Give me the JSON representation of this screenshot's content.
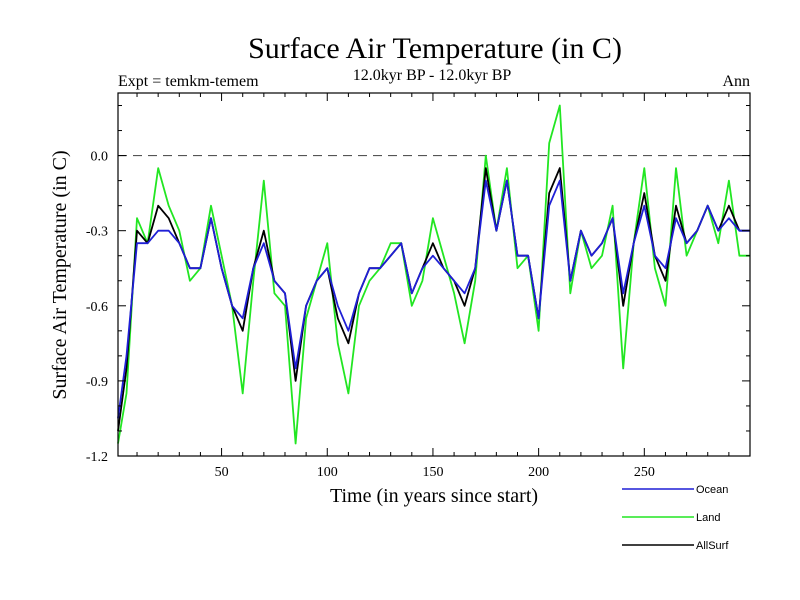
{
  "chart_data": {
    "type": "line",
    "title": "Surface Air Temperature (in C)",
    "subtitle": "12.0kyr BP - 12.0kyr BP",
    "top_left_label": "Expt = temkm-temem",
    "top_right_label": "Ann",
    "xlabel": "Time (in years since start)",
    "ylabel": "Surface Air Temperature (in C)",
    "xlim": [
      1,
      300
    ],
    "ylim": [
      -1.2,
      0.25
    ],
    "xticks": [
      50,
      100,
      150,
      200,
      250
    ],
    "xtick_labels": [
      "50",
      "100",
      "150",
      "200",
      "250"
    ],
    "yticks": [
      -1.2,
      -0.9,
      -0.6,
      -0.3,
      0.0
    ],
    "ytick_labels": [
      "-1.2",
      "-0.9",
      "-0.6",
      "-0.3",
      "0.0"
    ],
    "reference_line": 0.0,
    "legend_position": "bottom-right",
    "colors": {
      "Ocean": "#1f1fd6",
      "Land": "#22e622",
      "AllSurf": "#000000",
      "zero": "#555555"
    },
    "x": [
      1,
      5,
      10,
      15,
      20,
      25,
      30,
      35,
      40,
      45,
      50,
      55,
      60,
      65,
      70,
      75,
      80,
      85,
      90,
      95,
      100,
      105,
      110,
      115,
      120,
      125,
      130,
      135,
      140,
      145,
      150,
      155,
      160,
      165,
      170,
      175,
      180,
      185,
      190,
      195,
      200,
      205,
      210,
      215,
      220,
      225,
      230,
      235,
      240,
      245,
      250,
      255,
      260,
      265,
      270,
      275,
      280,
      285,
      290,
      295,
      300
    ],
    "series": [
      {
        "name": "Land",
        "values": [
          -1.15,
          -0.95,
          -0.25,
          -0.35,
          -0.05,
          -0.2,
          -0.3,
          -0.5,
          -0.45,
          -0.2,
          -0.4,
          -0.6,
          -0.95,
          -0.5,
          -0.1,
          -0.55,
          -0.6,
          -1.15,
          -0.65,
          -0.5,
          -0.35,
          -0.75,
          -0.95,
          -0.6,
          -0.5,
          -0.45,
          -0.35,
          -0.35,
          -0.6,
          -0.5,
          -0.25,
          -0.4,
          -0.55,
          -0.75,
          -0.5,
          0.0,
          -0.3,
          -0.05,
          -0.45,
          -0.4,
          -0.7,
          0.05,
          0.2,
          -0.55,
          -0.3,
          -0.45,
          -0.4,
          -0.2,
          -0.85,
          -0.35,
          -0.05,
          -0.45,
          -0.6,
          -0.05,
          -0.4,
          -0.3,
          -0.2,
          -0.35,
          -0.1,
          -0.4,
          -0.4
        ]
      },
      {
        "name": "AllSurf",
        "values": [
          -1.1,
          -0.85,
          -0.3,
          -0.35,
          -0.2,
          -0.25,
          -0.35,
          -0.45,
          -0.45,
          -0.25,
          -0.45,
          -0.6,
          -0.7,
          -0.45,
          -0.3,
          -0.5,
          -0.55,
          -0.9,
          -0.6,
          -0.5,
          -0.45,
          -0.65,
          -0.75,
          -0.55,
          -0.45,
          -0.45,
          -0.4,
          -0.35,
          -0.55,
          -0.45,
          -0.35,
          -0.45,
          -0.5,
          -0.6,
          -0.45,
          -0.05,
          -0.3,
          -0.1,
          -0.4,
          -0.4,
          -0.65,
          -0.15,
          -0.05,
          -0.5,
          -0.3,
          -0.4,
          -0.35,
          -0.25,
          -0.6,
          -0.35,
          -0.15,
          -0.4,
          -0.5,
          -0.2,
          -0.35,
          -0.3,
          -0.2,
          -0.3,
          -0.2,
          -0.3,
          -0.3
        ]
      },
      {
        "name": "Ocean",
        "values": [
          -1.05,
          -0.8,
          -0.35,
          -0.35,
          -0.3,
          -0.3,
          -0.35,
          -0.45,
          -0.45,
          -0.25,
          -0.45,
          -0.6,
          -0.65,
          -0.45,
          -0.35,
          -0.5,
          -0.55,
          -0.85,
          -0.6,
          -0.5,
          -0.45,
          -0.6,
          -0.7,
          -0.55,
          -0.45,
          -0.45,
          -0.4,
          -0.35,
          -0.55,
          -0.45,
          -0.4,
          -0.45,
          -0.5,
          -0.55,
          -0.45,
          -0.1,
          -0.3,
          -0.1,
          -0.4,
          -0.4,
          -0.65,
          -0.2,
          -0.1,
          -0.5,
          -0.3,
          -0.4,
          -0.35,
          -0.25,
          -0.55,
          -0.35,
          -0.2,
          -0.4,
          -0.45,
          -0.25,
          -0.35,
          -0.3,
          -0.2,
          -0.3,
          -0.25,
          -0.3,
          -0.3
        ]
      }
    ]
  }
}
